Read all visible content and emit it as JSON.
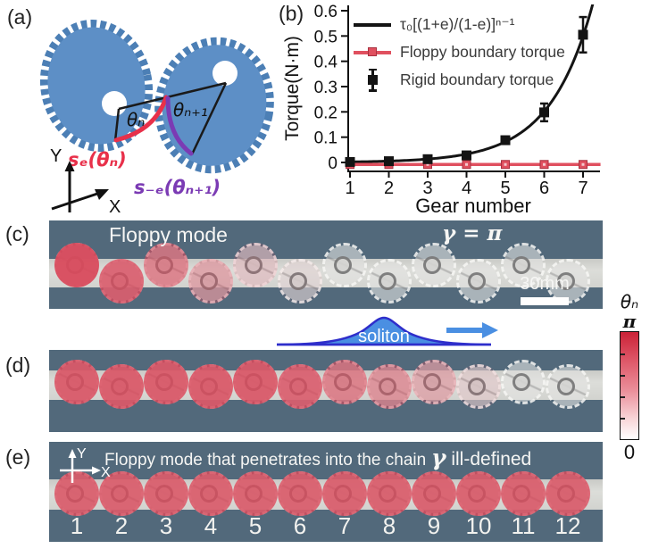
{
  "panels": {
    "a": {
      "label": "(a)",
      "theta_left": "θₙ",
      "theta_right": "θₙ₊₁",
      "arc_left_label": "sₑ(θₙ)",
      "arc_right_label": "s₋ₑ(θₙ₊₁)",
      "axis_y": "Y",
      "axis_x": "X",
      "colors": {
        "gear_blue": "#5d8fc6",
        "arc_left": "#e8304a",
        "arc_right": "#7b3bb4"
      }
    },
    "b": {
      "label": "(b)"
    },
    "c": {
      "label": "(c)",
      "title": "Floppy mode",
      "gamma_label": "γ = π",
      "scalebar_label": "30mm",
      "gear_shading": [
        0.95,
        0.8,
        0.6,
        0.38,
        0.18,
        0.06,
        0,
        0,
        0,
        0,
        0,
        0
      ]
    },
    "d": {
      "label": "(d)",
      "soliton_label": "soliton",
      "gear_shading": [
        0.85,
        0.85,
        0.85,
        0.85,
        0.85,
        0.8,
        0.62,
        0.5,
        0.35,
        0.12,
        0,
        0
      ]
    },
    "e": {
      "label": "(e)",
      "caption": "Floppy mode that penetrates into the chain",
      "gamma_symbol": "γ",
      "gamma_rest": " ill-defined",
      "axis_y": "Y",
      "axis_x": "X",
      "numbers": [
        "1",
        "2",
        "3",
        "4",
        "5",
        "6",
        "7",
        "8",
        "9",
        "10",
        "11",
        "12"
      ],
      "gear_shading": [
        0.82,
        0.82,
        0.82,
        0.82,
        0.82,
        0.82,
        0.82,
        0.82,
        0.82,
        0.82,
        0.82,
        0.82
      ]
    },
    "colorbar": {
      "title": "θₙ",
      "top_label": "π",
      "bottom_label": "0"
    }
  },
  "colors": {
    "photo_background": "#52697b",
    "photo_band": "#d6d7d3",
    "gear_red": "#d84a5c",
    "soliton_blue": "#4a8fe2",
    "soliton_outline": "#2e2ecb"
  },
  "chart_data": {
    "type": "line",
    "title": "",
    "xlabel": "Gear number",
    "ylabel": "Torque(N·m)",
    "xlim": [
      0.95,
      7.45
    ],
    "ylim": [
      -0.035,
      0.62
    ],
    "xticks": [
      1,
      2,
      3,
      4,
      5,
      6,
      7
    ],
    "yticks": [
      0,
      0.1,
      0.2,
      0.3,
      0.4,
      0.5,
      0.6
    ],
    "grid": false,
    "legend_position": "upper-left",
    "series": [
      {
        "name": "τ₀[(1+e)/(1-e)]ⁿ⁻¹",
        "kind": "model-curve",
        "color": "#141414",
        "model": {
          "tau0": 0.0022,
          "ratio": 2.47
        },
        "x_range": [
          0.95,
          7.45
        ]
      },
      {
        "name": "Floppy boundary torque",
        "kind": "line-with-square-markers",
        "color": "#e0505f",
        "x": [
          1,
          2,
          3,
          4,
          5,
          6,
          7
        ],
        "y": [
          -0.008,
          -0.008,
          -0.008,
          -0.008,
          -0.008,
          -0.008,
          -0.008
        ]
      },
      {
        "name": "Rigid boundary torque",
        "kind": "points-with-errorbars",
        "color": "#141414",
        "x": [
          1,
          2,
          3,
          4,
          5,
          6,
          7
        ],
        "y": [
          0.002,
          0.005,
          0.013,
          0.028,
          0.088,
          0.198,
          0.505
        ],
        "yerr": [
          0.003,
          0.004,
          0.005,
          0.009,
          0.014,
          0.035,
          0.07
        ]
      }
    ]
  }
}
